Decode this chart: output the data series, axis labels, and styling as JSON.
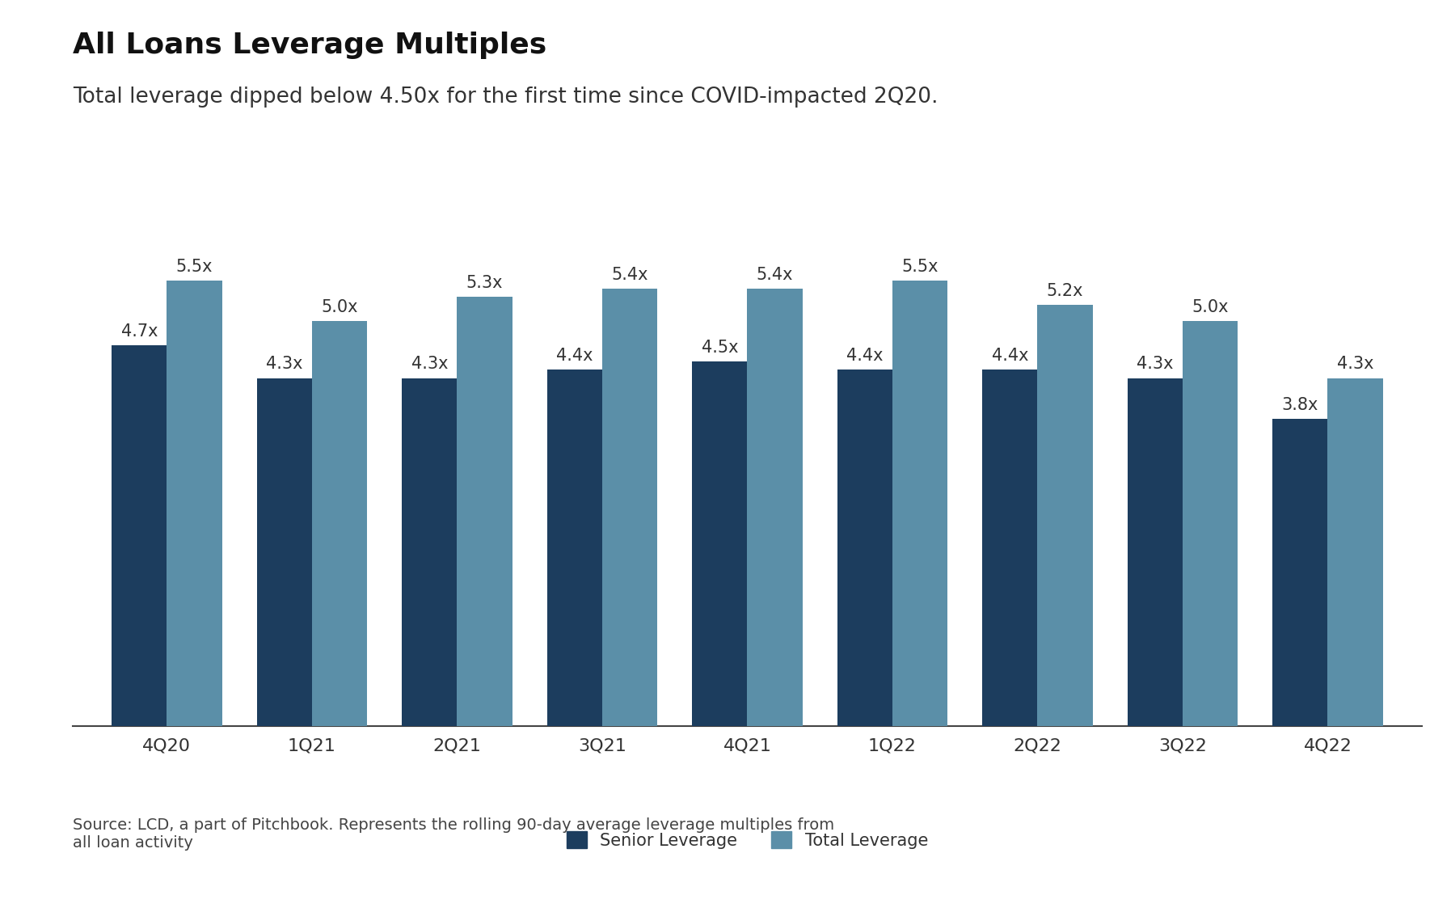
{
  "title": "All Loans Leverage Multiples",
  "subtitle": "Total leverage dipped below 4.50x for the first time since COVID-impacted 2Q20.",
  "categories": [
    "4Q20",
    "1Q21",
    "2Q21",
    "3Q21",
    "4Q21",
    "1Q22",
    "2Q22",
    "3Q22",
    "4Q22"
  ],
  "senior_leverage": [
    4.7,
    4.3,
    4.3,
    4.4,
    4.5,
    4.4,
    4.4,
    4.3,
    3.8
  ],
  "total_leverage": [
    5.5,
    5.0,
    5.3,
    5.4,
    5.4,
    5.5,
    5.2,
    5.0,
    4.3
  ],
  "senior_labels": [
    "4.7x",
    "4.3x",
    "4.3x",
    "4.4x",
    "4.5x",
    "4.4x",
    "4.4x",
    "4.3x",
    "3.8x"
  ],
  "total_labels": [
    "5.5x",
    "5.0x",
    "5.3x",
    "5.4x",
    "5.4x",
    "5.5x",
    "5.2x",
    "5.0x",
    "4.3x"
  ],
  "senior_color": "#1c3d5e",
  "total_color": "#5b8fa8",
  "bar_width": 0.38,
  "ylim": [
    0,
    6.5
  ],
  "legend_senior": "Senior Leverage",
  "legend_total": "Total Leverage",
  "source_text": "Source: LCD, a part of Pitchbook. Represents the rolling 90-day average leverage multiples from\nall loan activity",
  "background_color": "#ffffff",
  "title_fontsize": 26,
  "subtitle_fontsize": 19,
  "label_fontsize": 15,
  "tick_fontsize": 16,
  "legend_fontsize": 15,
  "source_fontsize": 14
}
